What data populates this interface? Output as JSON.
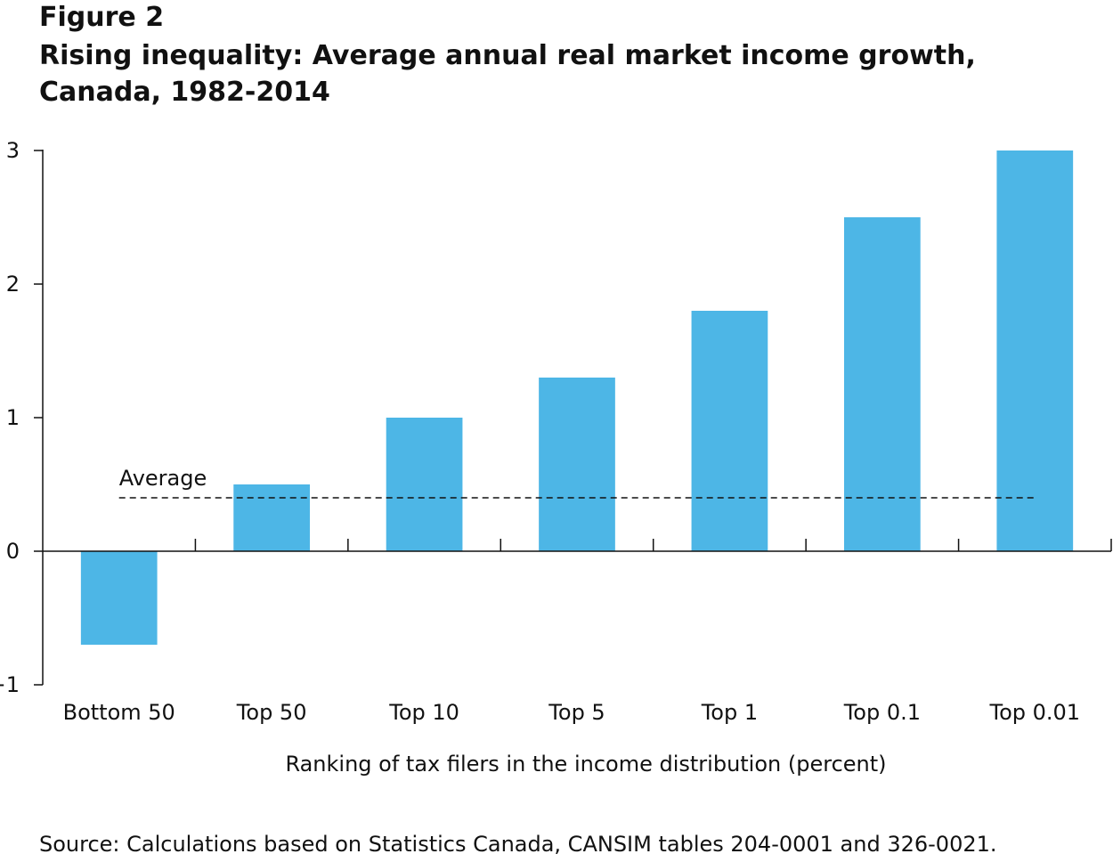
{
  "figure_label": "Figure 2",
  "source": "Source: Calculations based on Statistics Canada, CANSIM tables 204-0001 and 326-0021.",
  "chart_data": {
    "type": "bar",
    "title": "Rising inequality: Average annual real market income growth, Canada, 1982-2014",
    "categories": [
      "Bottom 50",
      "Top 50",
      "Top 10",
      "Top 5",
      "Top 1",
      "Top 0.1",
      "Top 0.01"
    ],
    "values": [
      -0.7,
      0.5,
      1.0,
      1.3,
      1.8,
      2.5,
      3.0
    ],
    "xlabel": "Ranking of tax filers in the income distribution (percent)",
    "ylabel": "",
    "ylim": [
      -1,
      3
    ],
    "yticks": [
      -1,
      0,
      1,
      2,
      3
    ],
    "ytick_labels": [
      "−1",
      "0",
      "1",
      "2",
      "3"
    ],
    "grid": false,
    "legend": "none",
    "bar_color": "#4db6e6",
    "reference_line": {
      "label": "Average",
      "value": 0.4,
      "style": "dashed"
    }
  }
}
